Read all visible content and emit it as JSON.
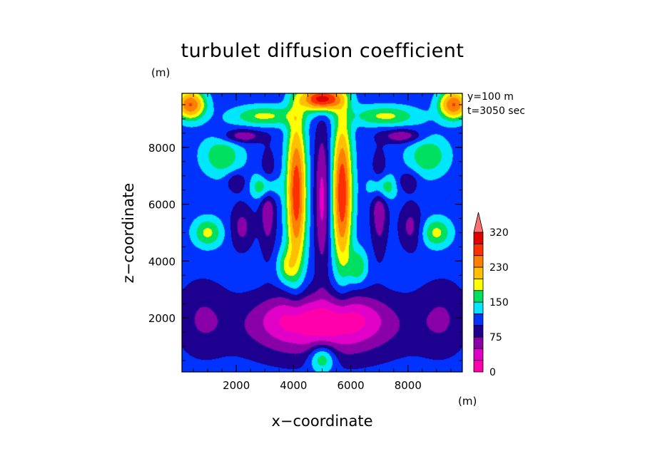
{
  "chart_data": {
    "type": "heatmap",
    "title": "turbulet diffusion coefficient",
    "xlabel": "x−coordinate",
    "ylabel": "z−coordinate",
    "x_unit": "(m)",
    "z_unit": "(m)",
    "annotations": [
      "y=100  m",
      "t=3050 sec"
    ],
    "xlim": [
      100,
      9900
    ],
    "ylim": [
      100,
      9900
    ],
    "x_ticks": [
      2000,
      4000,
      6000,
      8000
    ],
    "y_ticks": [
      2000,
      4000,
      6000,
      8000
    ],
    "x_tick_labels": [
      "2000",
      "4000",
      "6000",
      "8000"
    ],
    "y_tick_labels": [
      "2000",
      "4000",
      "6000",
      "8000"
    ],
    "colorbar": {
      "levels": [
        0,
        25,
        50,
        75,
        100,
        125,
        150,
        175,
        200,
        230,
        260,
        290,
        320
      ],
      "labels": [
        "0",
        "75",
        "150",
        "230",
        "320"
      ],
      "label_values": [
        0,
        75,
        150,
        230,
        320
      ],
      "colors": [
        "#ff00aa",
        "#e000c8",
        "#8a00a8",
        "#1e0090",
        "#0033ff",
        "#00e6ff",
        "#00e060",
        "#ffff00",
        "#ffc000",
        "#ff8000",
        "#ff3000",
        "#e00000",
        "#ff7070"
      ],
      "extend": "max"
    },
    "field": {
      "background": 112,
      "blobs": [
        {
          "x": 5000,
          "z": 1700,
          "sx": 2600,
          "sz": 1100,
          "a": -95
        },
        {
          "x": 3800,
          "z": 2100,
          "sx": 1100,
          "sz": 700,
          "a": -25
        },
        {
          "x": 6200,
          "z": 2100,
          "sx": 1100,
          "sz": 700,
          "a": -25
        },
        {
          "x": 5000,
          "z": 600,
          "sx": 450,
          "sz": 500,
          "a": 80
        },
        {
          "x": 800,
          "z": 2000,
          "sx": 900,
          "sz": 1300,
          "a": -35
        },
        {
          "x": 9200,
          "z": 2000,
          "sx": 900,
          "sz": 1300,
          "a": -35
        },
        {
          "x": 4100,
          "z": 6400,
          "sx": 330,
          "sz": 2600,
          "a": 170
        },
        {
          "x": 3750,
          "z": 3800,
          "sx": 320,
          "sz": 600,
          "a": 60
        },
        {
          "x": 5700,
          "z": 6400,
          "sx": 330,
          "sz": 2500,
          "a": 175
        },
        {
          "x": 6250,
          "z": 3800,
          "sx": 320,
          "sz": 600,
          "a": 60
        },
        {
          "x": 5000,
          "z": 6200,
          "sx": 260,
          "sz": 2500,
          "a": -70
        },
        {
          "x": 3100,
          "z": 6000,
          "sx": 280,
          "sz": 1600,
          "a": -60
        },
        {
          "x": 7000,
          "z": 6000,
          "sx": 280,
          "sz": 1600,
          "a": -60
        },
        {
          "x": 2200,
          "z": 5200,
          "sx": 400,
          "sz": 800,
          "a": -45
        },
        {
          "x": 8100,
          "z": 5200,
          "sx": 400,
          "sz": 800,
          "a": -45
        },
        {
          "x": 3000,
          "z": 6600,
          "sx": 450,
          "sz": 450,
          "a": 80
        },
        {
          "x": 7100,
          "z": 6600,
          "sx": 450,
          "sz": 450,
          "a": 80
        },
        {
          "x": 1500,
          "z": 7700,
          "sx": 700,
          "sz": 700,
          "a": 60
        },
        {
          "x": 8700,
          "z": 7700,
          "sx": 700,
          "sz": 700,
          "a": 60
        },
        {
          "x": 3000,
          "z": 9100,
          "sx": 1100,
          "sz": 350,
          "a": 70
        },
        {
          "x": 7200,
          "z": 9100,
          "sx": 1100,
          "sz": 350,
          "a": 70
        },
        {
          "x": 5000,
          "z": 9700,
          "sx": 700,
          "sz": 400,
          "a": 200
        },
        {
          "x": 400,
          "z": 9500,
          "sx": 500,
          "sz": 500,
          "a": 150
        },
        {
          "x": 9600,
          "z": 9500,
          "sx": 500,
          "sz": 500,
          "a": 150
        },
        {
          "x": 2200,
          "z": 8400,
          "sx": 700,
          "sz": 250,
          "a": -60
        },
        {
          "x": 7800,
          "z": 8400,
          "sx": 700,
          "sz": 250,
          "a": -60
        },
        {
          "x": 1000,
          "z": 5000,
          "sx": 500,
          "sz": 500,
          "a": 70
        },
        {
          "x": 9000,
          "z": 5000,
          "sx": 500,
          "sz": 500,
          "a": 70
        },
        {
          "x": 2000,
          "z": 6800,
          "sx": 350,
          "sz": 350,
          "a": -40
        },
        {
          "x": 8000,
          "z": 6800,
          "sx": 350,
          "sz": 350,
          "a": -40
        }
      ]
    }
  }
}
